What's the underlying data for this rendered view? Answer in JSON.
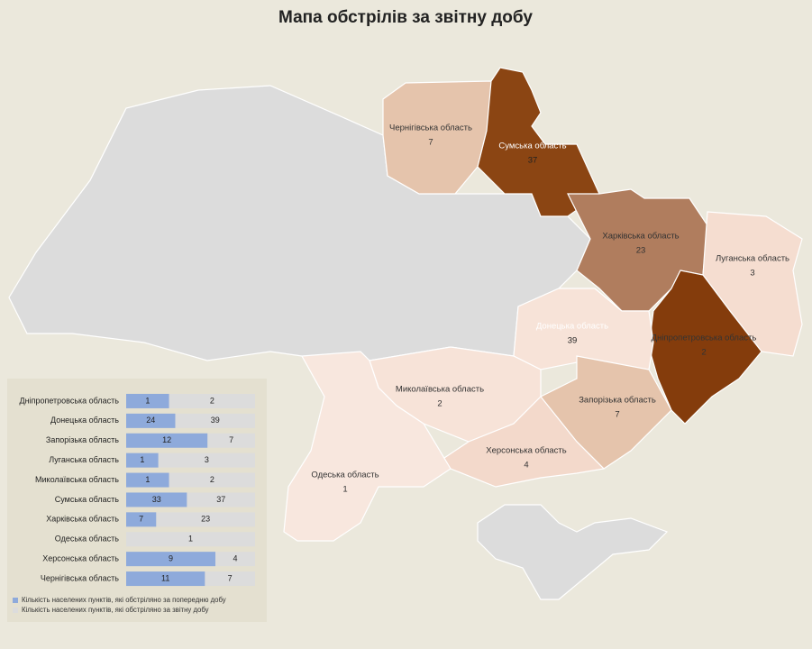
{
  "title": "Мапа обстрілів за звітну добу",
  "map": {
    "regions": [
      {
        "name": "Чернігівська область",
        "value": 7,
        "color": "#e5c4ac"
      },
      {
        "name": "Сумська область",
        "value": 37,
        "color": "#8b4513"
      },
      {
        "name": "Харківська область",
        "value": 23,
        "color": "#b07d5e"
      },
      {
        "name": "Луганська область",
        "value": 3,
        "color": "#f5ddd0"
      },
      {
        "name": "Донецька область",
        "value": 39,
        "color": "#843c0c"
      },
      {
        "name": "Дніпропетровська область",
        "value": 2,
        "color": "#f7e3d8"
      },
      {
        "name": "Запорізька область",
        "value": 7,
        "color": "#e5c4ac"
      },
      {
        "name": "Миколаївська область",
        "value": 2,
        "color": "#f7e3d8"
      },
      {
        "name": "Херсонська область",
        "value": 4,
        "color": "#f3d9cb"
      },
      {
        "name": "Одеська область",
        "value": 1,
        "color": "#f8e7de"
      }
    ]
  },
  "chart_data": {
    "type": "bar",
    "categories": [
      "Дніпропетровська область",
      "Донецька область",
      "Запорізька область",
      "Луганська область",
      "Миколаївська область",
      "Сумська область",
      "Харківська область",
      "Одеська область",
      "Херсонська область",
      "Чернігівська область"
    ],
    "series": [
      {
        "name": "Кількість населених пунктів, які обстріляно за попередню добу",
        "color": "#8eaadb",
        "values": [
          1,
          24,
          12,
          1,
          1,
          33,
          7,
          null,
          9,
          11
        ]
      },
      {
        "name": "Кількість населених пунктів, які обстріляно за звітну добу",
        "color": "#dcdcdc",
        "values": [
          2,
          39,
          7,
          3,
          2,
          37,
          23,
          1,
          4,
          7
        ]
      }
    ]
  }
}
